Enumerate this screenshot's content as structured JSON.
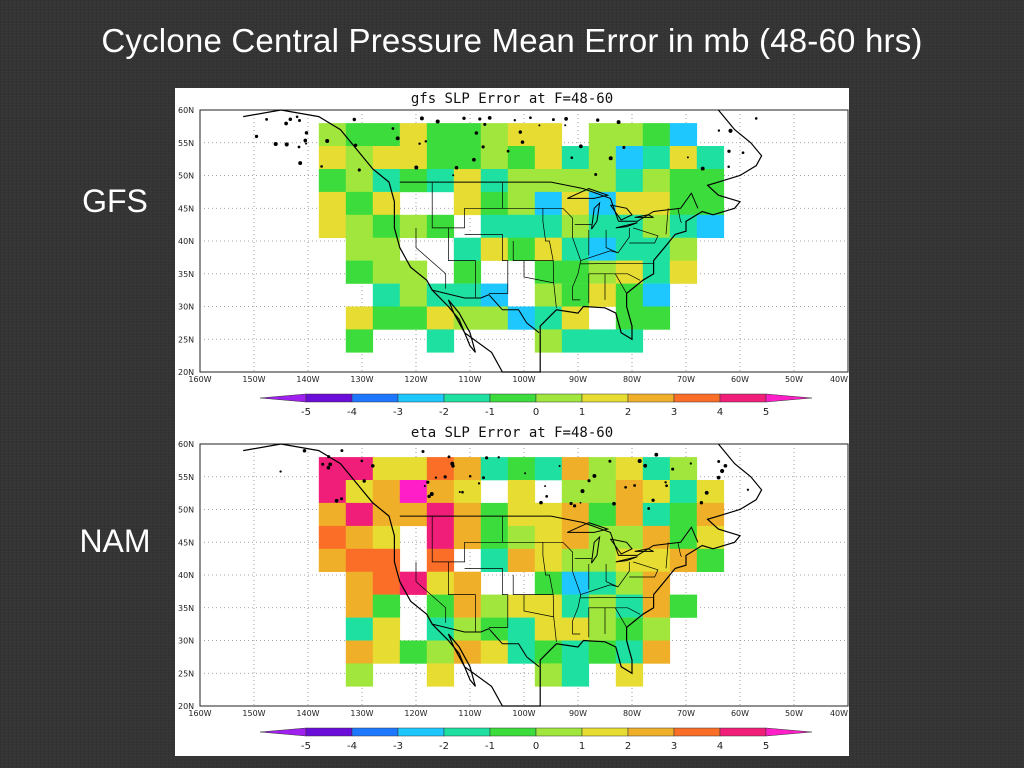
{
  "slide": {
    "title": "Cyclone Central Pressure Mean Error in mb (48-60 hrs)",
    "gfs_label": "GFS",
    "nam_label": "NAM"
  },
  "panels": [
    {
      "id": "gfs",
      "title": "gfs SLP Error at F=48-60",
      "seed": 11,
      "bias": 0.0,
      "west_bias": -0.2
    },
    {
      "id": "eta",
      "title": "eta SLP Error at F=48-60",
      "seed": 29,
      "bias": 0.6,
      "west_bias": 2.6
    }
  ],
  "map": {
    "lat_labels": [
      "60N",
      "55N",
      "50N",
      "45N",
      "40N",
      "35N",
      "30N",
      "25N",
      "20N"
    ],
    "lon_labels": [
      "160W",
      "150W",
      "140W",
      "130W",
      "120W",
      "110W",
      "100W",
      "90W",
      "80W",
      "70W",
      "60W",
      "50W",
      "40W"
    ]
  },
  "colorbar": {
    "ticks": [
      "-5",
      "-4",
      "-3",
      "-2",
      "-1",
      "0",
      "1",
      "2",
      "3",
      "4",
      "5"
    ],
    "colors": [
      "#a020f0",
      "#6a0dd8",
      "#1e78ff",
      "#1ec8ff",
      "#1ee0a0",
      "#3cdc3c",
      "#a0e63c",
      "#e6dc32",
      "#f0af28",
      "#fa6e28",
      "#f01e78",
      "#ff1ec8"
    ]
  }
}
